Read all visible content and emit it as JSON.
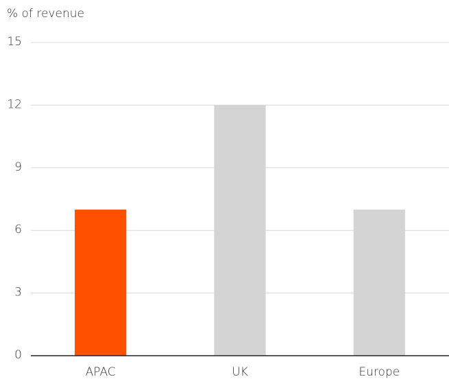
{
  "chart_data": {
    "type": "bar",
    "y_label": "% of revenue",
    "categories": [
      "APAC",
      "UK",
      "Europe"
    ],
    "values": [
      7,
      12,
      7
    ],
    "colors": [
      "#ff5000",
      "#d4d4d4",
      "#d4d4d4"
    ],
    "ylim": [
      0,
      15
    ],
    "yticks": [
      0,
      3,
      6,
      9,
      12,
      15
    ],
    "grid": true
  }
}
